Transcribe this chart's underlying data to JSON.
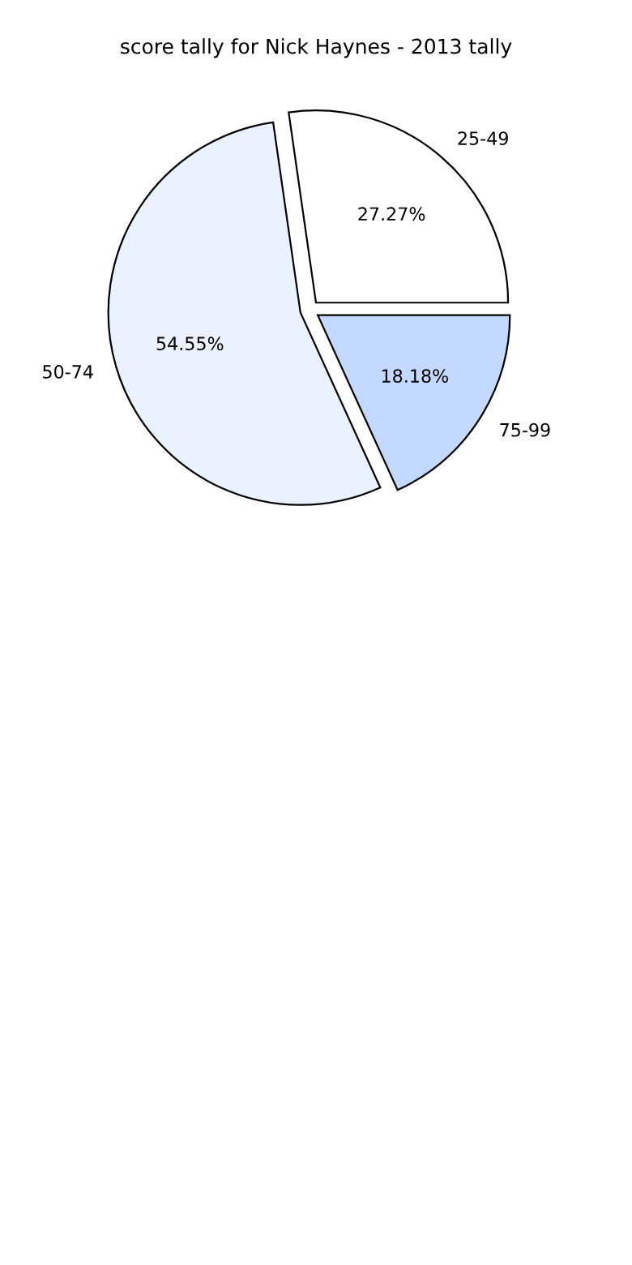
{
  "chart_data": {
    "type": "pie",
    "title": "score tally for Nick Haynes - 2013 tally",
    "categories": [
      "25-49",
      "50-74",
      "75-99"
    ],
    "values": [
      27.27,
      54.55,
      18.18
    ],
    "value_labels": [
      "27.27%",
      "54.55%",
      "18.18%"
    ],
    "colors": [
      "#ffffff",
      "#eaf1ff",
      "#c4d9ff"
    ]
  }
}
